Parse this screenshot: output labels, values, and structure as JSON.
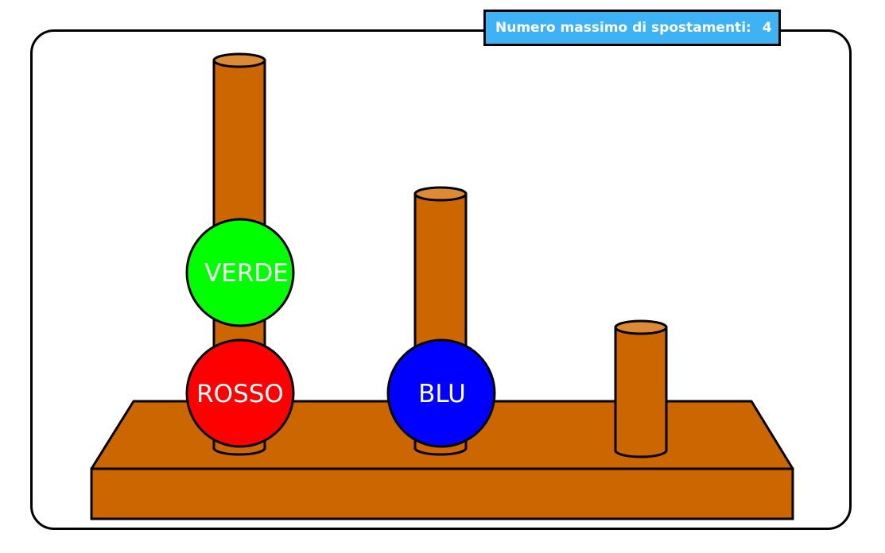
{
  "counter": {
    "label": "Numero massimo di spostamenti:",
    "value": "4"
  },
  "colors": {
    "wood": "#cc6600",
    "wood_top": "#dd8a36",
    "counter_bg": "#3db3f5"
  },
  "pegs": [
    {
      "name": "peg-1",
      "capacity": 3
    },
    {
      "name": "peg-2",
      "capacity": 2
    },
    {
      "name": "peg-3",
      "capacity": 1
    }
  ],
  "balls": [
    {
      "label": "ROSSO",
      "color": "#ff0000",
      "peg": 1,
      "level": 1
    },
    {
      "label": "VERDE",
      "color": "#00ff00",
      "peg": 1,
      "level": 2
    },
    {
      "label": "BLU",
      "color": "#0000ff",
      "peg": 2,
      "level": 1
    }
  ]
}
